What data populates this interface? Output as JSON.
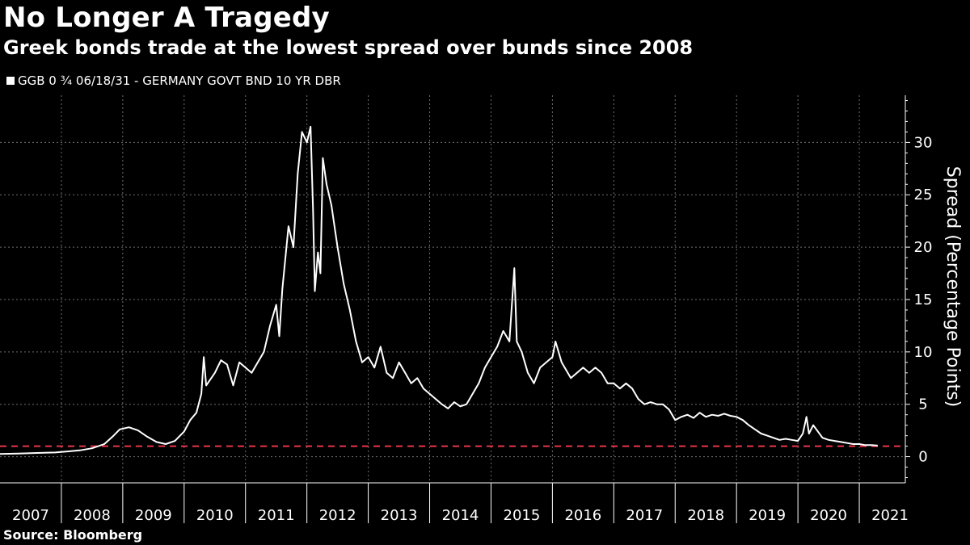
{
  "title": "No Longer A Tragedy",
  "subtitle": "Greek bonds trade at the lowest spread over bunds since 2008",
  "source": "Source: Bloomberg",
  "chart_data": {
    "type": "line",
    "ylabel": "Spread (Percentage Points)",
    "ylim": [
      -2.5,
      34.5
    ],
    "yticks": [
      0,
      5,
      10,
      15,
      20,
      25,
      30
    ],
    "xlim": [
      2007,
      2021.75
    ],
    "x_tick_labels": [
      "2007",
      "2008",
      "2009",
      "2010",
      "2011",
      "2012",
      "2013",
      "2014",
      "2015",
      "2016",
      "2017",
      "2018",
      "2019",
      "2020",
      "2021"
    ],
    "grid": true,
    "legend_position": "top-left",
    "series": [
      {
        "name": "GGB 0 ¾ 06/18/31 - GERMANY GOVT BND 10 YR DBR",
        "color": "#ffffff",
        "points": [
          [
            2007.0,
            0.25
          ],
          [
            2007.3,
            0.3
          ],
          [
            2007.6,
            0.35
          ],
          [
            2007.9,
            0.4
          ],
          [
            2008.1,
            0.5
          ],
          [
            2008.3,
            0.6
          ],
          [
            2008.5,
            0.8
          ],
          [
            2008.7,
            1.2
          ],
          [
            2008.85,
            2.0
          ],
          [
            2008.95,
            2.6
          ],
          [
            2009.1,
            2.8
          ],
          [
            2009.25,
            2.5
          ],
          [
            2009.4,
            1.9
          ],
          [
            2009.55,
            1.4
          ],
          [
            2009.7,
            1.2
          ],
          [
            2009.85,
            1.5
          ],
          [
            2010.0,
            2.4
          ],
          [
            2010.1,
            3.5
          ],
          [
            2010.2,
            4.2
          ],
          [
            2010.28,
            6.0
          ],
          [
            2010.32,
            9.5
          ],
          [
            2010.36,
            6.8
          ],
          [
            2010.5,
            8.0
          ],
          [
            2010.6,
            9.2
          ],
          [
            2010.7,
            8.8
          ],
          [
            2010.8,
            6.8
          ],
          [
            2010.9,
            9.0
          ],
          [
            2011.0,
            8.5
          ],
          [
            2011.1,
            8.0
          ],
          [
            2011.2,
            9.0
          ],
          [
            2011.3,
            10.0
          ],
          [
            2011.4,
            12.5
          ],
          [
            2011.5,
            14.5
          ],
          [
            2011.55,
            11.5
          ],
          [
            2011.6,
            16.0
          ],
          [
            2011.7,
            22.0
          ],
          [
            2011.78,
            20.0
          ],
          [
            2011.85,
            27.0
          ],
          [
            2011.92,
            31.0
          ],
          [
            2012.0,
            30.0
          ],
          [
            2012.06,
            31.5
          ],
          [
            2012.1,
            23.5
          ],
          [
            2012.13,
            15.8
          ],
          [
            2012.18,
            19.5
          ],
          [
            2012.22,
            17.5
          ],
          [
            2012.26,
            28.5
          ],
          [
            2012.32,
            26.0
          ],
          [
            2012.4,
            24.0
          ],
          [
            2012.5,
            20.0
          ],
          [
            2012.6,
            16.5
          ],
          [
            2012.7,
            14.0
          ],
          [
            2012.8,
            11.0
          ],
          [
            2012.9,
            9.0
          ],
          [
            2013.0,
            9.5
          ],
          [
            2013.1,
            8.5
          ],
          [
            2013.2,
            10.5
          ],
          [
            2013.3,
            8.0
          ],
          [
            2013.4,
            7.5
          ],
          [
            2013.5,
            9.0
          ],
          [
            2013.6,
            8.0
          ],
          [
            2013.7,
            7.0
          ],
          [
            2013.8,
            7.5
          ],
          [
            2013.9,
            6.5
          ],
          [
            2014.0,
            6.0
          ],
          [
            2014.1,
            5.5
          ],
          [
            2014.2,
            5.0
          ],
          [
            2014.3,
            4.6
          ],
          [
            2014.4,
            5.2
          ],
          [
            2014.5,
            4.8
          ],
          [
            2014.6,
            5.0
          ],
          [
            2014.7,
            6.0
          ],
          [
            2014.8,
            7.0
          ],
          [
            2014.9,
            8.5
          ],
          [
            2015.0,
            9.5
          ],
          [
            2015.1,
            10.5
          ],
          [
            2015.2,
            12.0
          ],
          [
            2015.3,
            11.0
          ],
          [
            2015.38,
            18.0
          ],
          [
            2015.42,
            11.0
          ],
          [
            2015.5,
            10.0
          ],
          [
            2015.6,
            8.0
          ],
          [
            2015.7,
            7.0
          ],
          [
            2015.8,
            8.5
          ],
          [
            2015.9,
            9.0
          ],
          [
            2016.0,
            9.5
          ],
          [
            2016.05,
            11.0
          ],
          [
            2016.15,
            9.0
          ],
          [
            2016.3,
            7.5
          ],
          [
            2016.4,
            8.0
          ],
          [
            2016.5,
            8.5
          ],
          [
            2016.6,
            8.0
          ],
          [
            2016.7,
            8.5
          ],
          [
            2016.8,
            8.0
          ],
          [
            2016.9,
            7.0
          ],
          [
            2017.0,
            7.0
          ],
          [
            2017.1,
            6.5
          ],
          [
            2017.2,
            7.0
          ],
          [
            2017.3,
            6.5
          ],
          [
            2017.4,
            5.5
          ],
          [
            2017.5,
            5.0
          ],
          [
            2017.6,
            5.2
          ],
          [
            2017.7,
            5.0
          ],
          [
            2017.8,
            5.0
          ],
          [
            2017.9,
            4.5
          ],
          [
            2018.0,
            3.5
          ],
          [
            2018.1,
            3.8
          ],
          [
            2018.2,
            4.0
          ],
          [
            2018.3,
            3.7
          ],
          [
            2018.4,
            4.2
          ],
          [
            2018.5,
            3.8
          ],
          [
            2018.6,
            4.0
          ],
          [
            2018.7,
            3.9
          ],
          [
            2018.8,
            4.1
          ],
          [
            2018.9,
            3.9
          ],
          [
            2019.0,
            3.8
          ],
          [
            2019.1,
            3.5
          ],
          [
            2019.2,
            3.0
          ],
          [
            2019.3,
            2.6
          ],
          [
            2019.4,
            2.2
          ],
          [
            2019.5,
            2.0
          ],
          [
            2019.6,
            1.8
          ],
          [
            2019.7,
            1.6
          ],
          [
            2019.8,
            1.7
          ],
          [
            2019.9,
            1.6
          ],
          [
            2020.0,
            1.5
          ],
          [
            2020.08,
            2.2
          ],
          [
            2020.14,
            3.8
          ],
          [
            2020.18,
            2.2
          ],
          [
            2020.25,
            3.0
          ],
          [
            2020.3,
            2.6
          ],
          [
            2020.4,
            1.8
          ],
          [
            2020.5,
            1.6
          ],
          [
            2020.6,
            1.5
          ],
          [
            2020.7,
            1.4
          ],
          [
            2020.8,
            1.3
          ],
          [
            2020.9,
            1.2
          ],
          [
            2021.0,
            1.2
          ],
          [
            2021.1,
            1.1
          ],
          [
            2021.2,
            1.1
          ],
          [
            2021.3,
            1.05
          ]
        ]
      }
    ],
    "reference_lines": [
      {
        "y": 1.0,
        "color": "#e8344a",
        "style": "dashed"
      }
    ]
  }
}
